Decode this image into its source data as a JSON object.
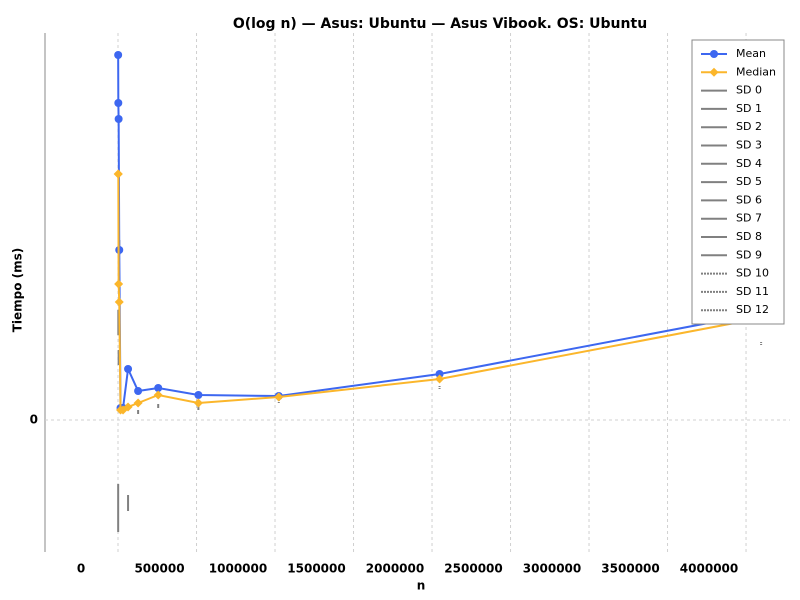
{
  "chart_data": {
    "type": "line",
    "title": "O(log n) — Asus: Ubuntu — Asus Vibook. OS: Ubuntu",
    "x_label": "n",
    "y_label": "Tiempo (ms)",
    "x": [
      1000,
      2000,
      4000,
      8000,
      16000,
      32000,
      64000,
      128000,
      256000,
      512000,
      1024000,
      2048000,
      4096000
    ],
    "series": [
      {
        "name": "Mean",
        "color": "#3d67f0",
        "marker": "circle",
        "values": [
          3.65,
          3.17,
          3.01,
          1.7,
          0.12,
          0.12,
          0.51,
          0.29,
          0.32,
          0.25,
          0.24,
          0.46,
          1.07
        ]
      },
      {
        "name": "Median",
        "color": "#fbb62b",
        "marker": "diamond",
        "values": [
          2.46,
          2.46,
          1.36,
          1.18,
          0.1,
          0.1,
          0.13,
          0.17,
          0.25,
          0.17,
          0.23,
          0.41,
          1.02
        ]
      }
    ],
    "sd_series": [
      {
        "name": "SD 0",
        "color": "#808080",
        "dashed": false,
        "x": 1000,
        "values": [
          -0.64,
          -1.12
        ]
      },
      {
        "name": "SD 1",
        "color": "#808080",
        "dashed": false,
        "x": 2000,
        "values": [
          1.1,
          0.85
        ]
      },
      {
        "name": "SD 2",
        "color": "#808080",
        "dashed": false,
        "x": 4000,
        "values": [
          0.7,
          0.55
        ]
      },
      {
        "name": "SD 3",
        "color": "#808080",
        "dashed": false,
        "x": 8000,
        "values": [
          1.8,
          1.65
        ]
      },
      {
        "name": "SD 4",
        "color": "#808080",
        "dashed": false,
        "x": 16000,
        "values": [
          0.16,
          0.12
        ]
      },
      {
        "name": "SD 5",
        "color": "#808080",
        "dashed": false,
        "x": 32000,
        "values": [
          0.16,
          0.12
        ]
      },
      {
        "name": "SD 6",
        "color": "#808080",
        "dashed": false,
        "x": 64000,
        "values": [
          -0.75,
          -0.91
        ]
      },
      {
        "name": "SD 7",
        "color": "#808080",
        "dashed": false,
        "x": 128000,
        "values": [
          0.1,
          0.06
        ]
      },
      {
        "name": "SD 8",
        "color": "#808080",
        "dashed": false,
        "x": 256000,
        "values": [
          0.16,
          0.12
        ]
      },
      {
        "name": "SD 9",
        "color": "#808080",
        "dashed": false,
        "x": 512000,
        "values": [
          0.14,
          0.1
        ]
      },
      {
        "name": "SD 10",
        "color": "#808080",
        "dashed": true,
        "x": 1024000,
        "values": [
          0.2,
          0.16
        ]
      },
      {
        "name": "SD 11",
        "color": "#808080",
        "dashed": true,
        "x": 2048000,
        "values": [
          0.34,
          0.31
        ]
      },
      {
        "name": "SD 12",
        "color": "#808080",
        "dashed": true,
        "x": 4096000,
        "values": [
          0.78,
          0.74
        ]
      }
    ],
    "xlim": [
      -465000,
      4280000
    ],
    "xticks": [
      0,
      500000,
      1000000,
      1500000,
      2000000,
      2500000,
      3000000,
      3500000,
      4000000
    ],
    "ylim": [
      -1.32,
      3.87
    ],
    "yticks": [
      0
    ],
    "grid": true,
    "legend": "top-right"
  }
}
